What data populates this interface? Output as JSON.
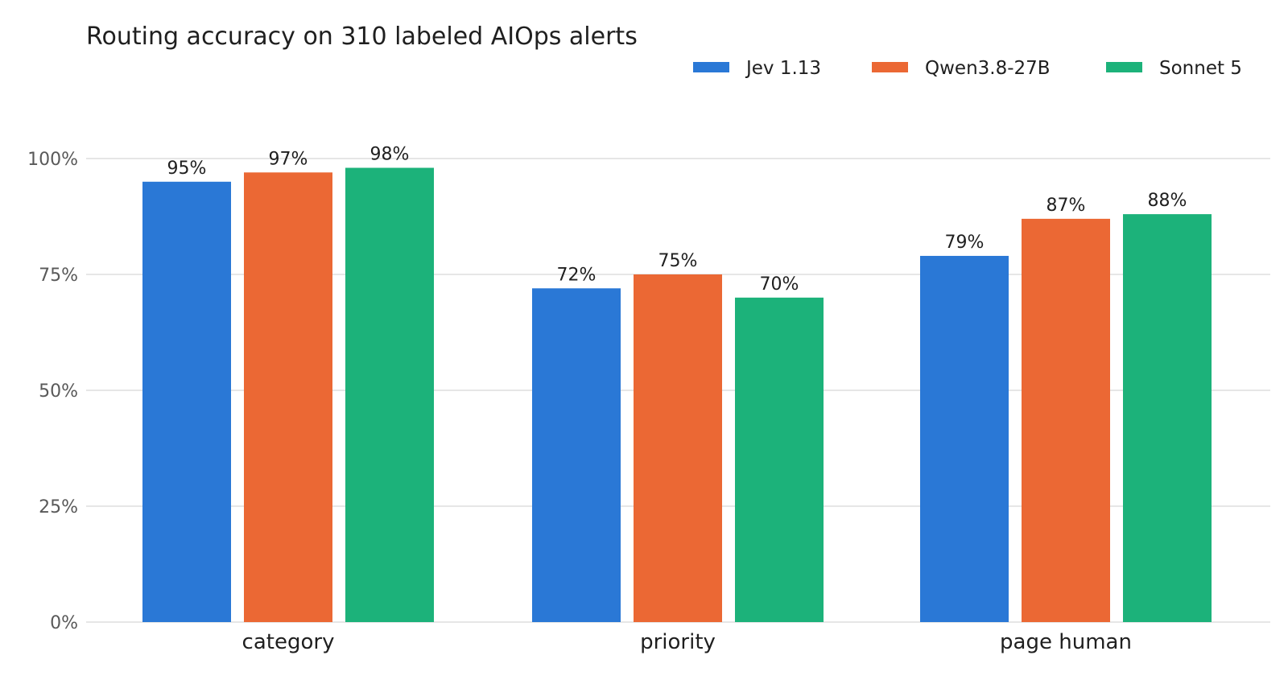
{
  "chart_data": {
    "type": "bar",
    "title": "Routing accuracy on 310 labeled AIOps alerts",
    "xlabel": "",
    "ylabel": "",
    "categories": [
      "category",
      "priority",
      "page human"
    ],
    "series": [
      {
        "name": "Jev 1.13",
        "color": "#2a78d6",
        "values": [
          95,
          72,
          79
        ],
        "labels": [
          "95%",
          "72%",
          "79%"
        ]
      },
      {
        "name": "Qwen3.8-27B",
        "color": "#eb6834",
        "values": [
          97,
          75,
          87
        ],
        "labels": [
          "97%",
          "75%",
          "87%"
        ]
      },
      {
        "name": "Sonnet 5",
        "color": "#1cb27a",
        "values": [
          98,
          70,
          88
        ],
        "labels": [
          "98%",
          "70%",
          "88%"
        ]
      }
    ],
    "ylim": [
      0,
      100
    ],
    "yticks": [
      0,
      25,
      50,
      75,
      100
    ],
    "ytick_labels": [
      "0%",
      "25%",
      "50%",
      "75%",
      "100%"
    ],
    "grid": "horizontal",
    "legend_position": "top-right"
  }
}
